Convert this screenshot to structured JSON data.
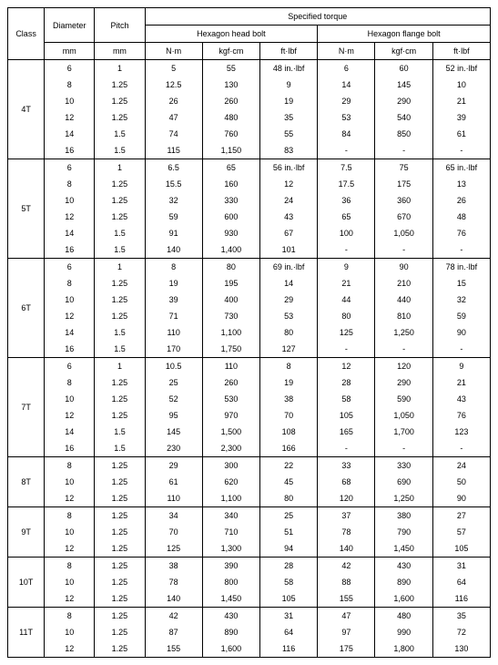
{
  "headers": {
    "class": "Class",
    "diameter": "Diameter",
    "diameter_unit": "mm",
    "pitch": "Pitch",
    "pitch_unit": "mm",
    "spec_torque": "Specified torque",
    "hex_head": "Hexagon head bolt",
    "hex_flange": "Hexagon flange bolt",
    "nm": "N·m",
    "kgfcm": "kgf·cm",
    "ftlbf": "ft·lbf"
  },
  "groups": [
    {
      "class": "4T",
      "rows": [
        {
          "d": "6",
          "p": "1",
          "h": [
            "5",
            "55",
            "48 in.·lbf"
          ],
          "f": [
            "6",
            "60",
            "52 in.·lbf"
          ]
        },
        {
          "d": "8",
          "p": "1.25",
          "h": [
            "12.5",
            "130",
            "9"
          ],
          "f": [
            "14",
            "145",
            "10"
          ]
        },
        {
          "d": "10",
          "p": "1.25",
          "h": [
            "26",
            "260",
            "19"
          ],
          "f": [
            "29",
            "290",
            "21"
          ]
        },
        {
          "d": "12",
          "p": "1.25",
          "h": [
            "47",
            "480",
            "35"
          ],
          "f": [
            "53",
            "540",
            "39"
          ]
        },
        {
          "d": "14",
          "p": "1.5",
          "h": [
            "74",
            "760",
            "55"
          ],
          "f": [
            "84",
            "850",
            "61"
          ]
        },
        {
          "d": "16",
          "p": "1.5",
          "h": [
            "115",
            "1,150",
            "83"
          ],
          "f": [
            "-",
            "-",
            "-"
          ]
        }
      ]
    },
    {
      "class": "5T",
      "rows": [
        {
          "d": "6",
          "p": "1",
          "h": [
            "6.5",
            "65",
            "56 in.·lbf"
          ],
          "f": [
            "7.5",
            "75",
            "65 in.·lbf"
          ]
        },
        {
          "d": "8",
          "p": "1.25",
          "h": [
            "15.5",
            "160",
            "12"
          ],
          "f": [
            "17.5",
            "175",
            "13"
          ]
        },
        {
          "d": "10",
          "p": "1.25",
          "h": [
            "32",
            "330",
            "24"
          ],
          "f": [
            "36",
            "360",
            "26"
          ]
        },
        {
          "d": "12",
          "p": "1.25",
          "h": [
            "59",
            "600",
            "43"
          ],
          "f": [
            "65",
            "670",
            "48"
          ]
        },
        {
          "d": "14",
          "p": "1.5",
          "h": [
            "91",
            "930",
            "67"
          ],
          "f": [
            "100",
            "1,050",
            "76"
          ]
        },
        {
          "d": "16",
          "p": "1.5",
          "h": [
            "140",
            "1,400",
            "101"
          ],
          "f": [
            "-",
            "-",
            "-"
          ]
        }
      ]
    },
    {
      "class": "6T",
      "rows": [
        {
          "d": "6",
          "p": "1",
          "h": [
            "8",
            "80",
            "69 in.·lbf"
          ],
          "f": [
            "9",
            "90",
            "78 in.·lbf"
          ]
        },
        {
          "d": "8",
          "p": "1.25",
          "h": [
            "19",
            "195",
            "14"
          ],
          "f": [
            "21",
            "210",
            "15"
          ]
        },
        {
          "d": "10",
          "p": "1.25",
          "h": [
            "39",
            "400",
            "29"
          ],
          "f": [
            "44",
            "440",
            "32"
          ]
        },
        {
          "d": "12",
          "p": "1.25",
          "h": [
            "71",
            "730",
            "53"
          ],
          "f": [
            "80",
            "810",
            "59"
          ]
        },
        {
          "d": "14",
          "p": "1.5",
          "h": [
            "110",
            "1,100",
            "80"
          ],
          "f": [
            "125",
            "1,250",
            "90"
          ]
        },
        {
          "d": "16",
          "p": "1.5",
          "h": [
            "170",
            "1,750",
            "127"
          ],
          "f": [
            "-",
            "-",
            "-"
          ]
        }
      ]
    },
    {
      "class": "7T",
      "rows": [
        {
          "d": "6",
          "p": "1",
          "h": [
            "10.5",
            "110",
            "8"
          ],
          "f": [
            "12",
            "120",
            "9"
          ]
        },
        {
          "d": "8",
          "p": "1.25",
          "h": [
            "25",
            "260",
            "19"
          ],
          "f": [
            "28",
            "290",
            "21"
          ]
        },
        {
          "d": "10",
          "p": "1.25",
          "h": [
            "52",
            "530",
            "38"
          ],
          "f": [
            "58",
            "590",
            "43"
          ]
        },
        {
          "d": "12",
          "p": "1.25",
          "h": [
            "95",
            "970",
            "70"
          ],
          "f": [
            "105",
            "1,050",
            "76"
          ]
        },
        {
          "d": "14",
          "p": "1.5",
          "h": [
            "145",
            "1,500",
            "108"
          ],
          "f": [
            "165",
            "1,700",
            "123"
          ]
        },
        {
          "d": "16",
          "p": "1.5",
          "h": [
            "230",
            "2,300",
            "166"
          ],
          "f": [
            "-",
            "-",
            "-"
          ]
        }
      ]
    },
    {
      "class": "8T",
      "rows": [
        {
          "d": "8",
          "p": "1.25",
          "h": [
            "29",
            "300",
            "22"
          ],
          "f": [
            "33",
            "330",
            "24"
          ]
        },
        {
          "d": "10",
          "p": "1.25",
          "h": [
            "61",
            "620",
            "45"
          ],
          "f": [
            "68",
            "690",
            "50"
          ]
        },
        {
          "d": "12",
          "p": "1.25",
          "h": [
            "110",
            "1,100",
            "80"
          ],
          "f": [
            "120",
            "1,250",
            "90"
          ]
        }
      ]
    },
    {
      "class": "9T",
      "rows": [
        {
          "d": "8",
          "p": "1.25",
          "h": [
            "34",
            "340",
            "25"
          ],
          "f": [
            "37",
            "380",
            "27"
          ]
        },
        {
          "d": "10",
          "p": "1.25",
          "h": [
            "70",
            "710",
            "51"
          ],
          "f": [
            "78",
            "790",
            "57"
          ]
        },
        {
          "d": "12",
          "p": "1.25",
          "h": [
            "125",
            "1,300",
            "94"
          ],
          "f": [
            "140",
            "1,450",
            "105"
          ]
        }
      ]
    },
    {
      "class": "10T",
      "rows": [
        {
          "d": "8",
          "p": "1.25",
          "h": [
            "38",
            "390",
            "28"
          ],
          "f": [
            "42",
            "430",
            "31"
          ]
        },
        {
          "d": "10",
          "p": "1.25",
          "h": [
            "78",
            "800",
            "58"
          ],
          "f": [
            "88",
            "890",
            "64"
          ]
        },
        {
          "d": "12",
          "p": "1.25",
          "h": [
            "140",
            "1,450",
            "105"
          ],
          "f": [
            "155",
            "1,600",
            "116"
          ]
        }
      ]
    },
    {
      "class": "11T",
      "rows": [
        {
          "d": "8",
          "p": "1.25",
          "h": [
            "42",
            "430",
            "31"
          ],
          "f": [
            "47",
            "480",
            "35"
          ]
        },
        {
          "d": "10",
          "p": "1.25",
          "h": [
            "87",
            "890",
            "64"
          ],
          "f": [
            "97",
            "990",
            "72"
          ]
        },
        {
          "d": "12",
          "p": "1.25",
          "h": [
            "155",
            "1,600",
            "116"
          ],
          "f": [
            "175",
            "1,800",
            "130"
          ]
        }
      ]
    }
  ]
}
